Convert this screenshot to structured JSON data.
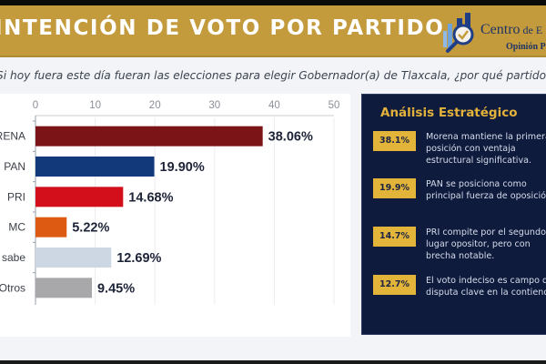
{
  "header": {
    "title": "INTENCIÓN DE VOTO POR PARTIDO",
    "brand_name_main": "Centro",
    "brand_name_small": " de E",
    "brand_sub": "Opinión P"
  },
  "question": "Si hoy fuera este día fueran las elecciones para elegir Gobernador(a) de Tlaxcala, ¿por qué partido votaría?",
  "chart_data": {
    "type": "bar",
    "orientation": "horizontal",
    "title": "INTENCIÓN DE VOTO POR PARTIDO",
    "xlabel": "",
    "ylabel": "",
    "xlim": [
      0,
      50
    ],
    "x_ticks": [
      0,
      10,
      20,
      30,
      40,
      50
    ],
    "grid": true,
    "legend": "none",
    "categories": [
      "MORENA",
      "PAN",
      "PRI",
      "MC",
      "No sabe",
      "Otros"
    ],
    "values": [
      38.06,
      19.9,
      14.68,
      5.22,
      12.69,
      9.45
    ],
    "value_labels": [
      "38.06%",
      "19.90%",
      "14.68%",
      "5.22%",
      "12.69%",
      "9.45%"
    ],
    "colors": [
      "#7b1416",
      "#12397a",
      "#d40f1c",
      "#dc5a12",
      "#cdd6e3",
      "#a8a8aa"
    ]
  },
  "analysis": {
    "title": "Análisis Estratégico",
    "items": [
      {
        "badge": "38.1%",
        "text": "Morena mantiene la primera posición con ventaja estructural significativa."
      },
      {
        "badge": "19.9%",
        "text": "PAN se posiciona como principal fuerza de oposición."
      },
      {
        "badge": "14.7%",
        "text": "PRI compite por el segundo lugar opositor, pero con brecha notable."
      },
      {
        "badge": "12.7%",
        "text": "El voto indeciso es campo de disputa clave en la contienda."
      }
    ]
  },
  "colors": {
    "header_gold": "#c39a3c",
    "panel_navy": "#0f1b3d",
    "badge_gold": "#e2b53a",
    "accent_title": "#e3b23a"
  }
}
